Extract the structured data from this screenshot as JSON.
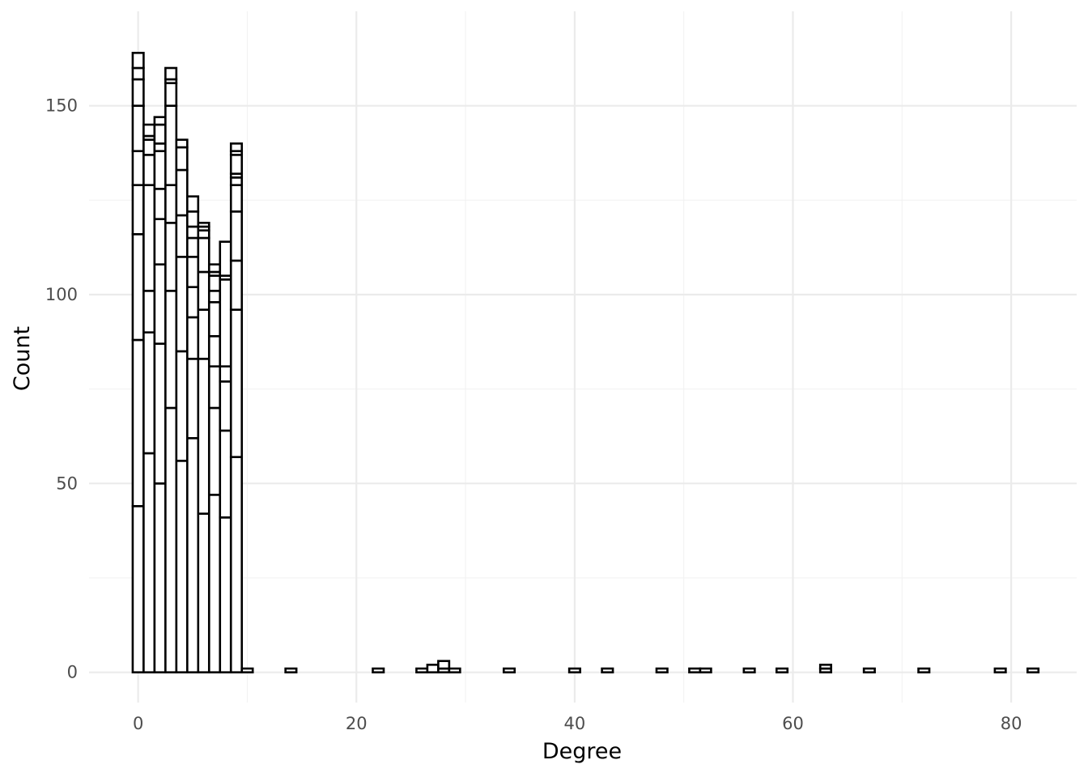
{
  "chart_data": {
    "type": "bar",
    "subtype": "stacked histogram",
    "title": "",
    "xlabel": "Degree",
    "ylabel": "Count",
    "xlim": [
      -4.5,
      86
    ],
    "ylim": [
      -8,
      175
    ],
    "x_major_ticks": [
      0,
      20,
      40,
      60,
      80
    ],
    "y_major_ticks": [
      0,
      50,
      100,
      150
    ],
    "x_tick_labels": [
      "0",
      "20",
      "40",
      "60",
      "80"
    ],
    "y_tick_labels": [
      "0",
      "50",
      "100",
      "150"
    ],
    "x_minor_ticks": [
      10,
      30,
      50,
      70
    ],
    "y_minor_ticks": [
      25,
      75,
      125
    ],
    "grid": true,
    "legend": "none",
    "bin_width": 1,
    "bars": [
      {
        "x": 0,
        "cumulative": [
          44,
          88,
          116,
          129,
          138,
          150,
          157,
          160,
          164
        ]
      },
      {
        "x": 1,
        "cumulative": [
          58,
          90,
          101,
          129,
          137,
          141,
          142,
          145
        ]
      },
      {
        "x": 2,
        "cumulative": [
          50,
          87,
          108,
          120,
          128,
          138,
          140,
          145,
          147
        ]
      },
      {
        "x": 3,
        "cumulative": [
          70,
          101,
          119,
          129,
          150,
          156,
          157,
          160
        ]
      },
      {
        "x": 4,
        "cumulative": [
          56,
          85,
          110,
          121,
          133,
          139,
          141
        ]
      },
      {
        "x": 5,
        "cumulative": [
          62,
          83,
          94,
          102,
          110,
          115,
          118,
          122,
          126
        ]
      },
      {
        "x": 6,
        "cumulative": [
          42,
          83,
          96,
          106,
          115,
          117,
          118,
          119
        ]
      },
      {
        "x": 7,
        "cumulative": [
          47,
          70,
          81,
          89,
          98,
          101,
          105,
          106,
          108
        ]
      },
      {
        "x": 8,
        "cumulative": [
          41,
          64,
          77,
          81,
          104,
          105,
          114
        ]
      },
      {
        "x": 9,
        "cumulative": [
          57,
          96,
          109,
          122,
          129,
          131,
          132,
          137,
          138,
          140
        ]
      },
      {
        "x": 10,
        "cumulative": [
          1
        ]
      },
      {
        "x": 14,
        "cumulative": [
          1
        ]
      },
      {
        "x": 22,
        "cumulative": [
          1
        ]
      },
      {
        "x": 26,
        "cumulative": [
          1
        ]
      },
      {
        "x": 27,
        "cumulative": [
          2
        ]
      },
      {
        "x": 28,
        "cumulative": [
          1,
          3
        ]
      },
      {
        "x": 29,
        "cumulative": [
          1
        ]
      },
      {
        "x": 34,
        "cumulative": [
          1
        ]
      },
      {
        "x": 40,
        "cumulative": [
          1
        ]
      },
      {
        "x": 43,
        "cumulative": [
          1
        ]
      },
      {
        "x": 48,
        "cumulative": [
          1
        ]
      },
      {
        "x": 51,
        "cumulative": [
          1
        ]
      },
      {
        "x": 52,
        "cumulative": [
          1
        ]
      },
      {
        "x": 56,
        "cumulative": [
          1
        ]
      },
      {
        "x": 59,
        "cumulative": [
          1
        ]
      },
      {
        "x": 63,
        "cumulative": [
          1,
          2
        ]
      },
      {
        "x": 67,
        "cumulative": [
          1
        ]
      },
      {
        "x": 72,
        "cumulative": [
          1
        ]
      },
      {
        "x": 79,
        "cumulative": [
          1
        ]
      },
      {
        "x": 82,
        "cumulative": [
          1
        ]
      }
    ]
  }
}
